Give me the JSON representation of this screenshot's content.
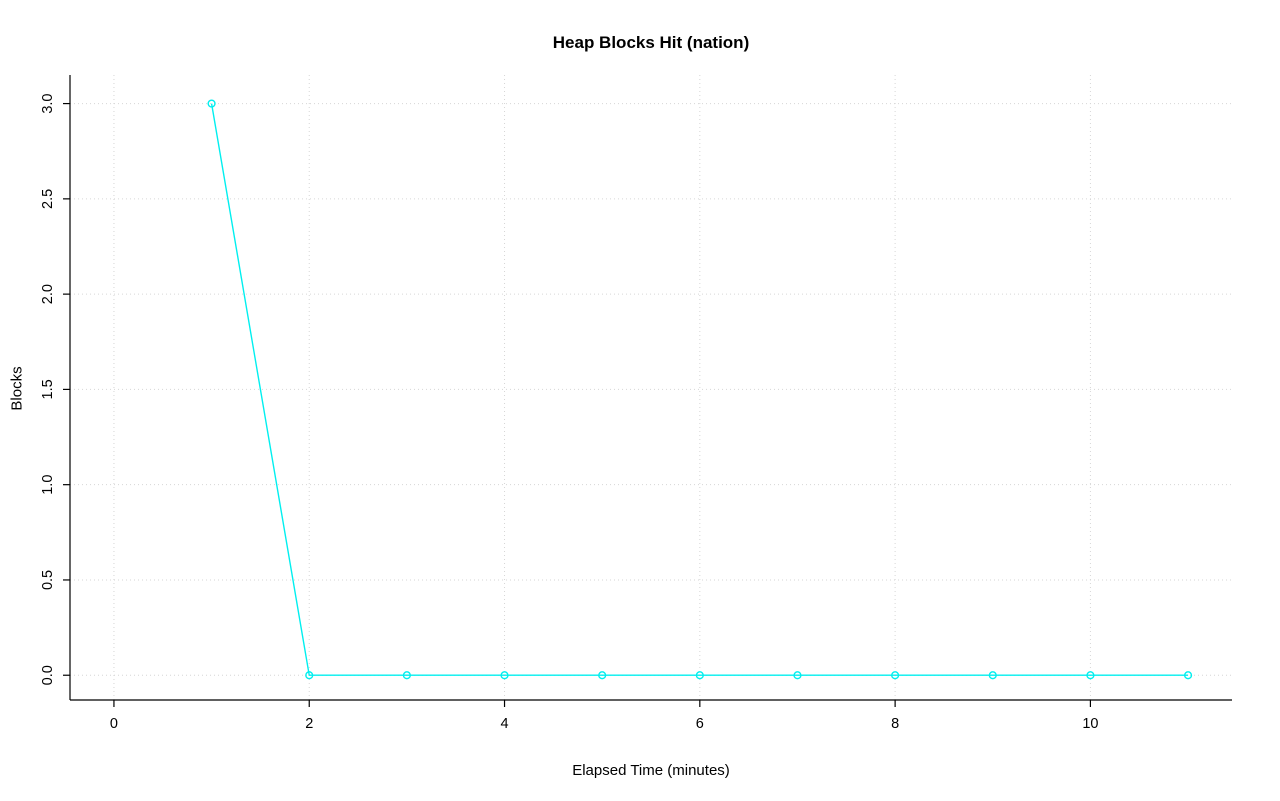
{
  "chart_data": {
    "type": "line",
    "title": "Heap Blocks Hit (nation)",
    "xlabel": "Elapsed Time (minutes)",
    "ylabel": "Blocks",
    "x": [
      1,
      2,
      3,
      4,
      5,
      6,
      7,
      8,
      9,
      10,
      11
    ],
    "y": [
      3,
      0,
      0,
      0,
      0,
      0,
      0,
      0,
      0,
      0,
      0
    ],
    "xlim": [
      -0.45,
      11.45
    ],
    "ylim": [
      -0.13,
      3.15
    ],
    "x_ticks": [
      0,
      2,
      4,
      6,
      8,
      10
    ],
    "x_tick_labels": [
      "0",
      "2",
      "4",
      "6",
      "8",
      "10"
    ],
    "y_ticks": [
      0.0,
      0.5,
      1.0,
      1.5,
      2.0,
      2.5,
      3.0
    ],
    "y_tick_labels": [
      "0.0",
      "0.5",
      "1.0",
      "1.5",
      "2.0",
      "2.5",
      "3.0"
    ],
    "series_color": "#00efef",
    "grid_color": "#d6d6d6",
    "axis_color": "#000000",
    "grid": "on",
    "legend": "none",
    "marker": "open-circle"
  }
}
